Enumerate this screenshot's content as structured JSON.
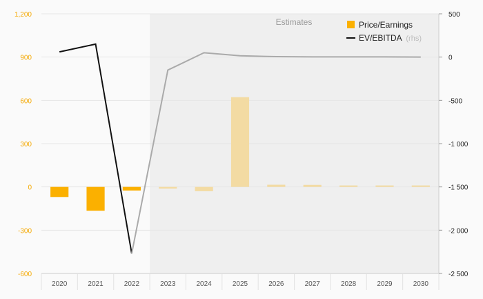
{
  "chart_data": {
    "type": "bar",
    "categories": [
      "2020",
      "2021",
      "2022",
      "2023",
      "2024",
      "2025",
      "2026",
      "2027",
      "2028",
      "2029",
      "2030"
    ],
    "estimates_from": "2023",
    "estimates_label": "Estimates",
    "series": [
      {
        "name": "Price/Earnings",
        "kind": "bar",
        "axis": "left",
        "color": "#fbb000",
        "estimate_color": "#f3dba3",
        "values": [
          -70,
          -165,
          -25,
          -12,
          -30,
          622,
          15,
          14,
          10,
          10,
          10
        ]
      },
      {
        "name": "EV/EBITDA",
        "name_suffix": "(rhs)",
        "kind": "line",
        "axis": "right",
        "color": "#111111",
        "estimate_color": "#aaaaaa",
        "values": [
          60,
          150,
          -2270,
          -150,
          50,
          15,
          5,
          2,
          2,
          2,
          0
        ]
      }
    ],
    "left_axis": {
      "ylim": [
        -600,
        1200
      ],
      "ticks": [
        -600,
        -300,
        0,
        300,
        600,
        900,
        1200
      ],
      "tick_labels": [
        "-600",
        "-300",
        "0",
        "300",
        "600",
        "900",
        "1,200"
      ],
      "color": "#f5a800"
    },
    "right_axis": {
      "ylim": [
        -2500,
        500
      ],
      "ticks": [
        -2500,
        -2000,
        -1500,
        -1000,
        -500,
        0,
        500
      ],
      "tick_labels": [
        "-2 500",
        "-2 000",
        "-1 500",
        "-1 000",
        "-500",
        "0",
        "500"
      ],
      "color": "#222222"
    },
    "grid": true,
    "legend_position": "top-right"
  }
}
